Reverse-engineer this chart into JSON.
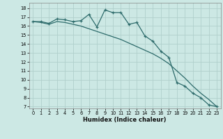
{
  "xlabel": "Humidex (Indice chaleur)",
  "bg_color": "#cce8e4",
  "grid_color": "#b0d0cc",
  "line_color": "#2d6b6b",
  "xlim": [
    -0.5,
    23.5
  ],
  "ylim": [
    6.8,
    18.6
  ],
  "yticks": [
    7,
    8,
    9,
    10,
    11,
    12,
    13,
    14,
    15,
    16,
    17,
    18
  ],
  "xticks": [
    0,
    1,
    2,
    3,
    4,
    5,
    6,
    7,
    8,
    9,
    10,
    11,
    12,
    13,
    14,
    15,
    16,
    17,
    18,
    19,
    20,
    21,
    22,
    23
  ],
  "line1_x": [
    0,
    1,
    2,
    3,
    4,
    5,
    6,
    7,
    8,
    9,
    10,
    11,
    12,
    13,
    14,
    15,
    16,
    17,
    18,
    19,
    20,
    21,
    22,
    23
  ],
  "line1_y": [
    16.5,
    16.5,
    16.3,
    16.8,
    16.7,
    16.5,
    16.6,
    17.3,
    15.9,
    17.8,
    17.5,
    17.5,
    16.2,
    16.4,
    14.9,
    14.3,
    13.2,
    12.5,
    9.7,
    9.3,
    8.5,
    8.0,
    7.2,
    7.0
  ],
  "line2_x": [
    0,
    1,
    2,
    3,
    4,
    5,
    6,
    7,
    8,
    9,
    10,
    11,
    12,
    13,
    14,
    15,
    16,
    17,
    18,
    19,
    20,
    21,
    22,
    23
  ],
  "line2_y": [
    16.5,
    16.4,
    16.2,
    16.5,
    16.4,
    16.2,
    16.0,
    15.7,
    15.4,
    15.1,
    14.8,
    14.5,
    14.1,
    13.7,
    13.3,
    12.9,
    12.4,
    11.8,
    11.0,
    10.2,
    9.3,
    8.5,
    7.8,
    7.0
  ]
}
